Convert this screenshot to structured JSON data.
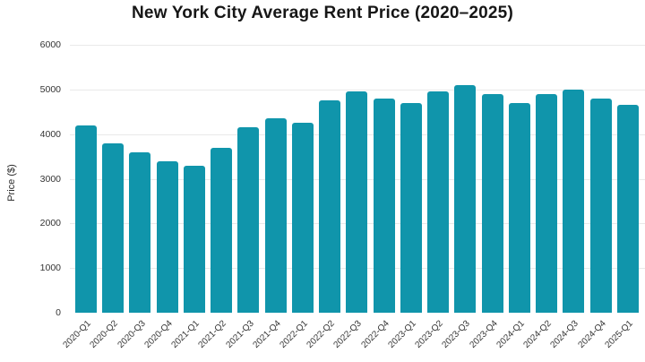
{
  "chart_data": {
    "type": "bar",
    "title": "New York City Average Rent Price (2020–2025)",
    "xlabel": "",
    "ylabel": "Price ($)",
    "categories": [
      "2020-Q1",
      "2020-Q2",
      "2020-Q3",
      "2020-Q4",
      "2021-Q1",
      "2021-Q2",
      "2021-Q3",
      "2021-Q4",
      "2022-Q1",
      "2022-Q2",
      "2022-Q3",
      "2022-Q4",
      "2023-Q1",
      "2023-Q2",
      "2023-Q3",
      "2023-Q4",
      "2024-Q1",
      "2024-Q2",
      "2024-Q3",
      "2024-Q4",
      "2025-Q1"
    ],
    "values": [
      4200,
      3800,
      3600,
      3400,
      3300,
      3700,
      4150,
      4350,
      4250,
      4750,
      4950,
      4800,
      4700,
      4950,
      5100,
      4900,
      4700,
      4900,
      5000,
      4800,
      4650
    ],
    "ylim": [
      0,
      6000
    ],
    "yticks": [
      0,
      1000,
      2000,
      3000,
      4000,
      5000,
      6000
    ],
    "grid": true,
    "legend": false,
    "bar_color": "#1095ab",
    "grid_color": "#e9e9e9"
  }
}
